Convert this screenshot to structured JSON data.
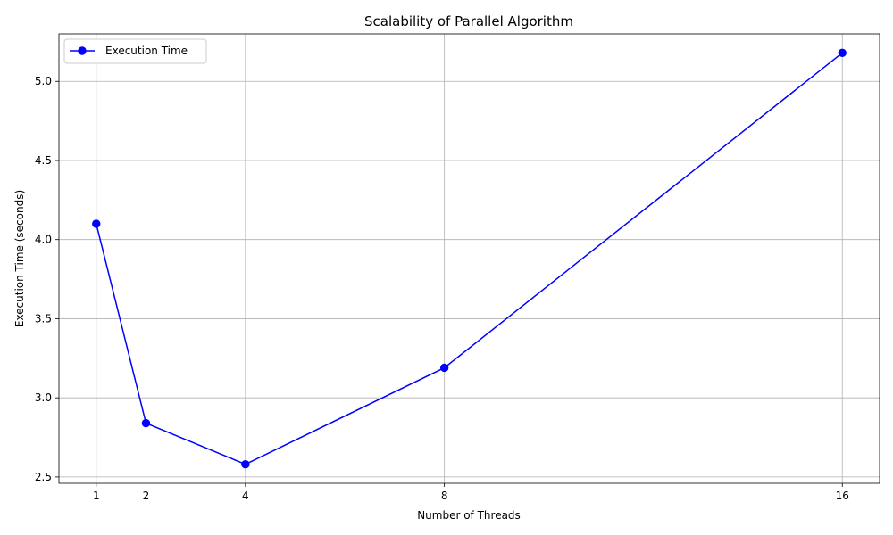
{
  "chart_data": {
    "type": "line",
    "title": "Scalability of Parallel Algorithm",
    "xlabel": "Number of Threads",
    "ylabel": "Execution Time (seconds)",
    "x": [
      1,
      2,
      4,
      8,
      16
    ],
    "x_ticks": [
      "1",
      "2",
      "4",
      "8",
      "16"
    ],
    "xlim": [
      0.25,
      16.75
    ],
    "ylim": [
      2.46,
      5.3
    ],
    "y_ticks": [
      "2.5",
      "3.0",
      "3.5",
      "4.0",
      "4.5",
      "5.0"
    ],
    "series": [
      {
        "name": "Execution Time",
        "values": [
          4.1,
          2.84,
          2.58,
          3.19,
          5.18
        ],
        "color": "#0000ff",
        "marker": "circle"
      }
    ],
    "grid": true,
    "legend": "top-left"
  }
}
